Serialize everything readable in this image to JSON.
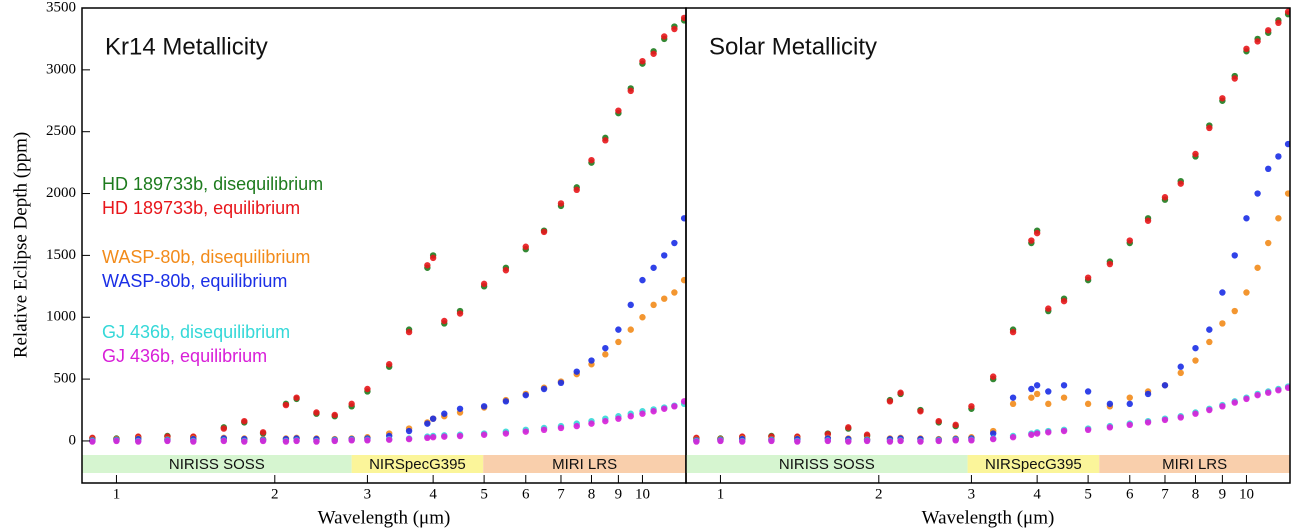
{
  "chart_data": [
    {
      "type": "scatter",
      "title": "Kr14 Metallicity",
      "xlabel": "Wavelength (μm)",
      "ylabel": "Relative Eclipse Depth (ppm)",
      "xscale": "log",
      "xlim": [
        0.86,
        12.1
      ],
      "ylim": [
        -340,
        3500
      ],
      "xticks": [
        1,
        2,
        3,
        4,
        5,
        6,
        7,
        8,
        9,
        10
      ],
      "yticks": [
        0,
        500,
        1000,
        1500,
        2000,
        2500,
        3000,
        3500
      ],
      "bands": [
        {
          "label": "NIRISS SOSS",
          "range": [
            0.86,
            2.8
          ],
          "color": "#d6f5d0"
        },
        {
          "label": "NIRSpecG395",
          "range": [
            2.8,
            4.98
          ],
          "color": "#fbf59a"
        },
        {
          "label": "MIRI LRS",
          "range": [
            4.98,
            12.1
          ],
          "color": "#f9cfac"
        }
      ],
      "x": [
        0.9,
        1.0,
        1.1,
        1.25,
        1.4,
        1.6,
        1.75,
        1.9,
        2.1,
        2.2,
        2.4,
        2.6,
        2.8,
        3.0,
        3.3,
        3.6,
        3.9,
        4.0,
        4.2,
        4.5,
        5.0,
        5.5,
        6.0,
        6.5,
        7.0,
        7.5,
        8,
        8.5,
        9,
        9.5,
        10,
        10.5,
        11,
        11.5,
        12
      ],
      "series": [
        {
          "name": "HD 189733b, disequilibrium",
          "color": "#1e7b1e",
          "values": [
            20,
            20,
            30,
            40,
            30,
            110,
            150,
            60,
            300,
            340,
            220,
            200,
            280,
            400,
            600,
            900,
            1400,
            1500,
            950,
            1050,
            1250,
            1400,
            1550,
            1700,
            1900,
            2050,
            2250,
            2450,
            2650,
            2850,
            3050,
            3150,
            3250,
            3350,
            3400
          ]
        },
        {
          "name": "HD 189733b, equilibrium",
          "color": "#e8161b",
          "values": [
            25,
            15,
            35,
            35,
            35,
            100,
            160,
            70,
            290,
            350,
            230,
            210,
            300,
            420,
            620,
            880,
            1420,
            1480,
            970,
            1030,
            1270,
            1380,
            1570,
            1690,
            1920,
            2030,
            2270,
            2430,
            2670,
            2830,
            3070,
            3130,
            3270,
            3330,
            3420
          ]
        },
        {
          "name": "WASP-80b, disequilibrium",
          "color": "#f28b1a",
          "values": [
            10,
            15,
            20,
            15,
            20,
            25,
            20,
            15,
            20,
            25,
            20,
            15,
            20,
            30,
            60,
            100,
            150,
            180,
            200,
            230,
            270,
            330,
            380,
            430,
            480,
            540,
            620,
            700,
            800,
            900,
            1000,
            1100,
            1150,
            1200,
            1300
          ]
        },
        {
          "name": "WASP-80b, equilibrium",
          "color": "#1a2ee6",
          "values": [
            5,
            10,
            15,
            10,
            15,
            20,
            15,
            10,
            15,
            20,
            15,
            10,
            15,
            20,
            40,
            80,
            140,
            180,
            220,
            260,
            280,
            320,
            370,
            420,
            470,
            560,
            650,
            750,
            900,
            1100,
            1300,
            1400,
            1500,
            1600,
            1800
          ]
        },
        {
          "name": "GJ 436b, disequilibrium",
          "color": "#35d8d8",
          "values": [
            0,
            5,
            0,
            5,
            0,
            5,
            0,
            5,
            0,
            5,
            0,
            5,
            10,
            10,
            15,
            20,
            35,
            40,
            45,
            50,
            60,
            75,
            90,
            105,
            120,
            140,
            160,
            180,
            200,
            220,
            240,
            255,
            270,
            285,
            300
          ]
        },
        {
          "name": "GJ 436b, equilibrium",
          "color": "#d81ed8",
          "values": [
            -5,
            0,
            -5,
            0,
            -5,
            0,
            -5,
            0,
            -5,
            0,
            -5,
            0,
            5,
            5,
            10,
            15,
            25,
            30,
            35,
            40,
            50,
            60,
            75,
            90,
            105,
            120,
            140,
            160,
            180,
            200,
            220,
            240,
            260,
            280,
            320
          ]
        }
      ]
    },
    {
      "type": "scatter",
      "title": "Solar Metallicity",
      "xlabel": "Wavelength (μm)",
      "xscale": "log",
      "xlim": [
        0.86,
        12.1
      ],
      "ylim": [
        -340,
        3500
      ],
      "xticks": [
        1,
        2,
        3,
        4,
        5,
        6,
        7,
        8,
        9,
        10
      ],
      "bands": [
        {
          "label": "NIRISS SOSS",
          "range": [
            0.86,
            2.95
          ],
          "color": "#d6f5d0"
        },
        {
          "label": "NIRSpecG395",
          "range": [
            2.95,
            5.25
          ],
          "color": "#fbf59a"
        },
        {
          "label": "MIRI LRS",
          "range": [
            5.25,
            12.1
          ],
          "color": "#f9cfac"
        }
      ],
      "x": [
        0.9,
        1.0,
        1.1,
        1.25,
        1.4,
        1.6,
        1.75,
        1.9,
        2.1,
        2.2,
        2.4,
        2.6,
        2.8,
        3.0,
        3.3,
        3.6,
        3.9,
        4.0,
        4.2,
        4.5,
        5.0,
        5.5,
        6.0,
        6.5,
        7.0,
        7.5,
        8,
        8.5,
        9,
        9.5,
        10,
        10.5,
        11,
        11.5,
        12
      ],
      "series": [
        {
          "color": "#1e7b1e",
          "values": [
            20,
            20,
            30,
            40,
            30,
            60,
            100,
            40,
            330,
            380,
            250,
            150,
            120,
            260,
            500,
            900,
            1600,
            1700,
            1050,
            1150,
            1300,
            1450,
            1600,
            1800,
            1950,
            2100,
            2300,
            2550,
            2750,
            2950,
            3150,
            3250,
            3300,
            3400,
            3450
          ]
        },
        {
          "color": "#e8161b",
          "values": [
            25,
            15,
            35,
            35,
            35,
            55,
            110,
            50,
            320,
            390,
            240,
            160,
            130,
            280,
            520,
            880,
            1620,
            1680,
            1070,
            1130,
            1320,
            1430,
            1620,
            1780,
            1970,
            2080,
            2320,
            2530,
            2770,
            2930,
            3170,
            3230,
            3320,
            3380,
            3470
          ]
        },
        {
          "color": "#f28b1a",
          "values": [
            10,
            15,
            20,
            15,
            20,
            25,
            20,
            15,
            20,
            25,
            20,
            15,
            20,
            30,
            80,
            300,
            350,
            380,
            300,
            350,
            300,
            280,
            350,
            400,
            450,
            550,
            650,
            800,
            950,
            1050,
            1200,
            1400,
            1600,
            1800,
            2000
          ]
        },
        {
          "color": "#1a2ee6",
          "values": [
            5,
            10,
            15,
            10,
            15,
            20,
            15,
            10,
            15,
            20,
            15,
            10,
            15,
            20,
            60,
            350,
            420,
            450,
            400,
            450,
            400,
            300,
            300,
            380,
            450,
            600,
            750,
            900,
            1200,
            1500,
            1800,
            2000,
            2200,
            2300,
            2400
          ]
        },
        {
          "color": "#35d8d8",
          "values": [
            0,
            5,
            0,
            5,
            0,
            5,
            0,
            5,
            0,
            5,
            0,
            5,
            10,
            10,
            20,
            40,
            60,
            70,
            80,
            90,
            100,
            120,
            140,
            160,
            180,
            200,
            230,
            260,
            290,
            320,
            350,
            380,
            400,
            420,
            440
          ]
        },
        {
          "color": "#d81ed8",
          "values": [
            -5,
            0,
            -5,
            0,
            -5,
            0,
            -5,
            0,
            -5,
            0,
            -5,
            0,
            5,
            5,
            15,
            30,
            50,
            60,
            70,
            80,
            90,
            110,
            130,
            150,
            170,
            190,
            220,
            250,
            280,
            310,
            340,
            370,
            390,
            410,
            430
          ]
        }
      ]
    }
  ]
}
